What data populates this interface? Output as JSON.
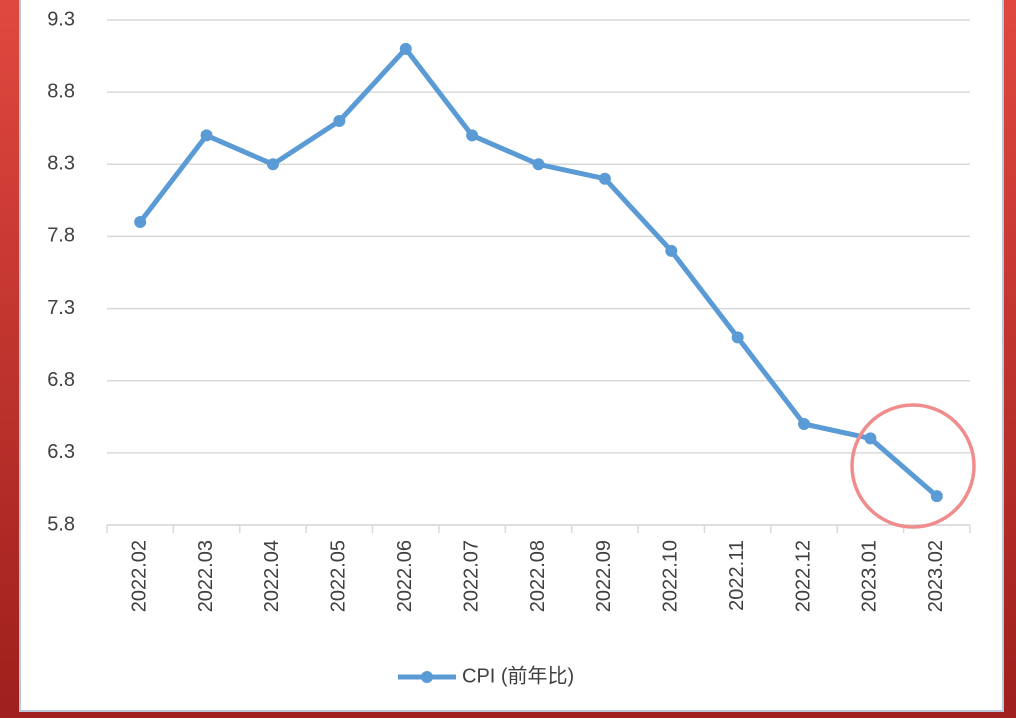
{
  "chart_data": {
    "type": "line",
    "categories": [
      "2022.02",
      "2022.03",
      "2022.04",
      "2022.05",
      "2022.06",
      "2022.07",
      "2022.08",
      "2022.09",
      "2022.10",
      "2022.11",
      "2022.12",
      "2023.01",
      "2023.02"
    ],
    "series": [
      {
        "name": "CPI (前年比)",
        "color": "#5b9bd5",
        "values": [
          7.9,
          8.5,
          8.3,
          8.6,
          9.1,
          8.5,
          8.3,
          8.2,
          7.7,
          7.1,
          6.5,
          6.4,
          6.0
        ]
      }
    ],
    "ylim": [
      5.8,
      9.3
    ],
    "yticks": [
      5.8,
      6.3,
      6.8,
      7.3,
      7.8,
      8.3,
      8.8,
      9.3
    ],
    "grid": true,
    "legend": "bottom"
  }
}
